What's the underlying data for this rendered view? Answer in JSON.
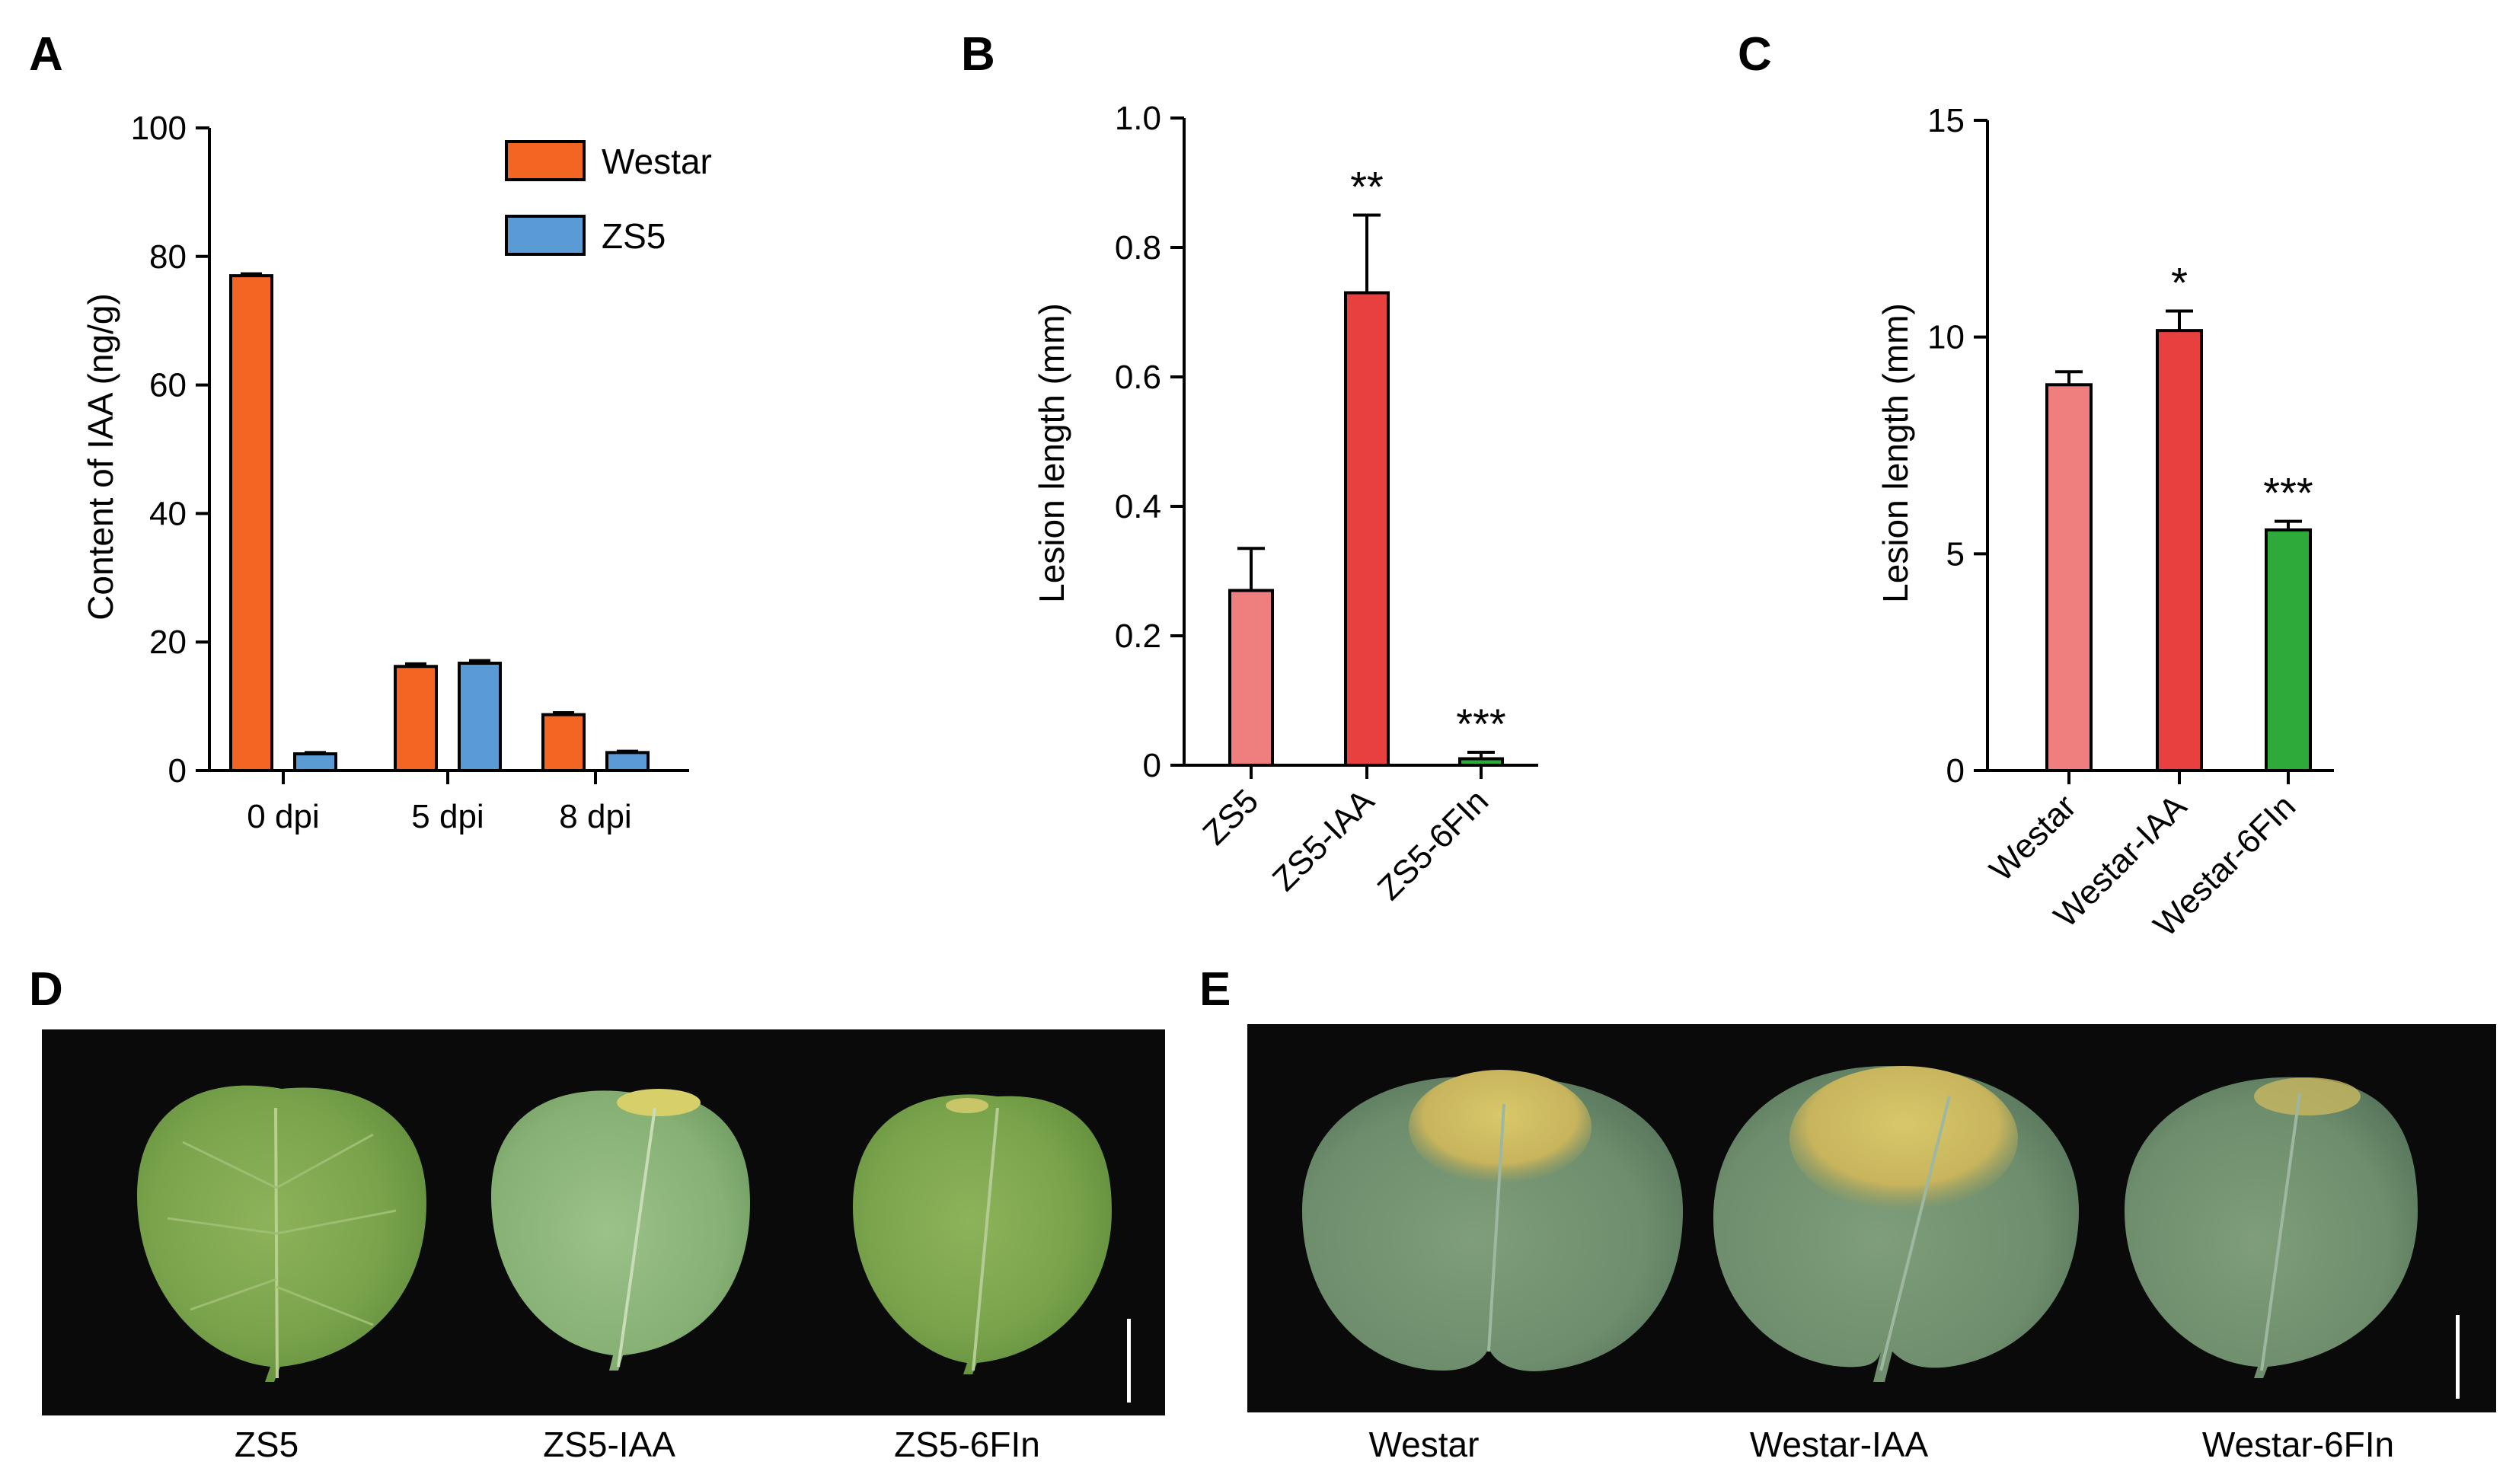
{
  "panels": {
    "a": "A",
    "b": "B",
    "c": "C",
    "d": "D",
    "e": "E"
  },
  "colors": {
    "westar": "#f26522",
    "zs5": "#5b9bd5",
    "light_red": "#ef7f7f",
    "red": "#e8403f",
    "green": "#2eaa3a",
    "photo_bg": "#0a0a0a"
  },
  "chart_data": [
    {
      "type": "bar",
      "panel": "A",
      "categories": [
        "0 dpi",
        "5 dpi",
        "8 dpi"
      ],
      "series": [
        {
          "name": "Westar",
          "values": [
            77,
            16.2,
            8.7
          ],
          "errors": [
            0.3,
            0.4,
            0.3
          ]
        },
        {
          "name": "ZS5",
          "values": [
            2.6,
            16.7,
            2.8
          ],
          "errors": [
            0.2,
            0.4,
            0.2
          ]
        }
      ],
      "ylabel": "Content of IAA (ng/g)",
      "ylim": [
        0,
        100
      ],
      "yticks": [
        0,
        20,
        40,
        60,
        80,
        100
      ],
      "legend": "top-right"
    },
    {
      "type": "bar",
      "panel": "B",
      "categories": [
        "ZS5",
        "ZS5-IAA",
        "ZS5-6FIn"
      ],
      "values": [
        0.27,
        0.73,
        0.01
      ],
      "errors": [
        0.065,
        0.12,
        0.01
      ],
      "significance": [
        "",
        "**",
        "***"
      ],
      "ylabel": "Lesion length (mm)",
      "ylim": [
        0,
        1.0
      ],
      "yticks": [
        "0",
        "0.2",
        "0.4",
        "0.6",
        "0.8",
        "1.0"
      ]
    },
    {
      "type": "bar",
      "panel": "C",
      "categories": [
        "Westar",
        "Westar-IAA",
        "Westar-6FIn"
      ],
      "values": [
        8.9,
        10.15,
        5.55
      ],
      "errors": [
        0.3,
        0.45,
        0.2
      ],
      "significance": [
        "",
        "*",
        "***"
      ],
      "ylabel": "Lesion length (mm)",
      "ylim": [
        0,
        15
      ],
      "yticks": [
        "0",
        "5",
        "10",
        "15"
      ]
    }
  ],
  "photos": {
    "d_labels": [
      "ZS5",
      "ZS5-IAA",
      "ZS5-6FIn"
    ],
    "e_labels": [
      "Westar",
      "Westar-IAA",
      "Westar-6FIn"
    ]
  }
}
